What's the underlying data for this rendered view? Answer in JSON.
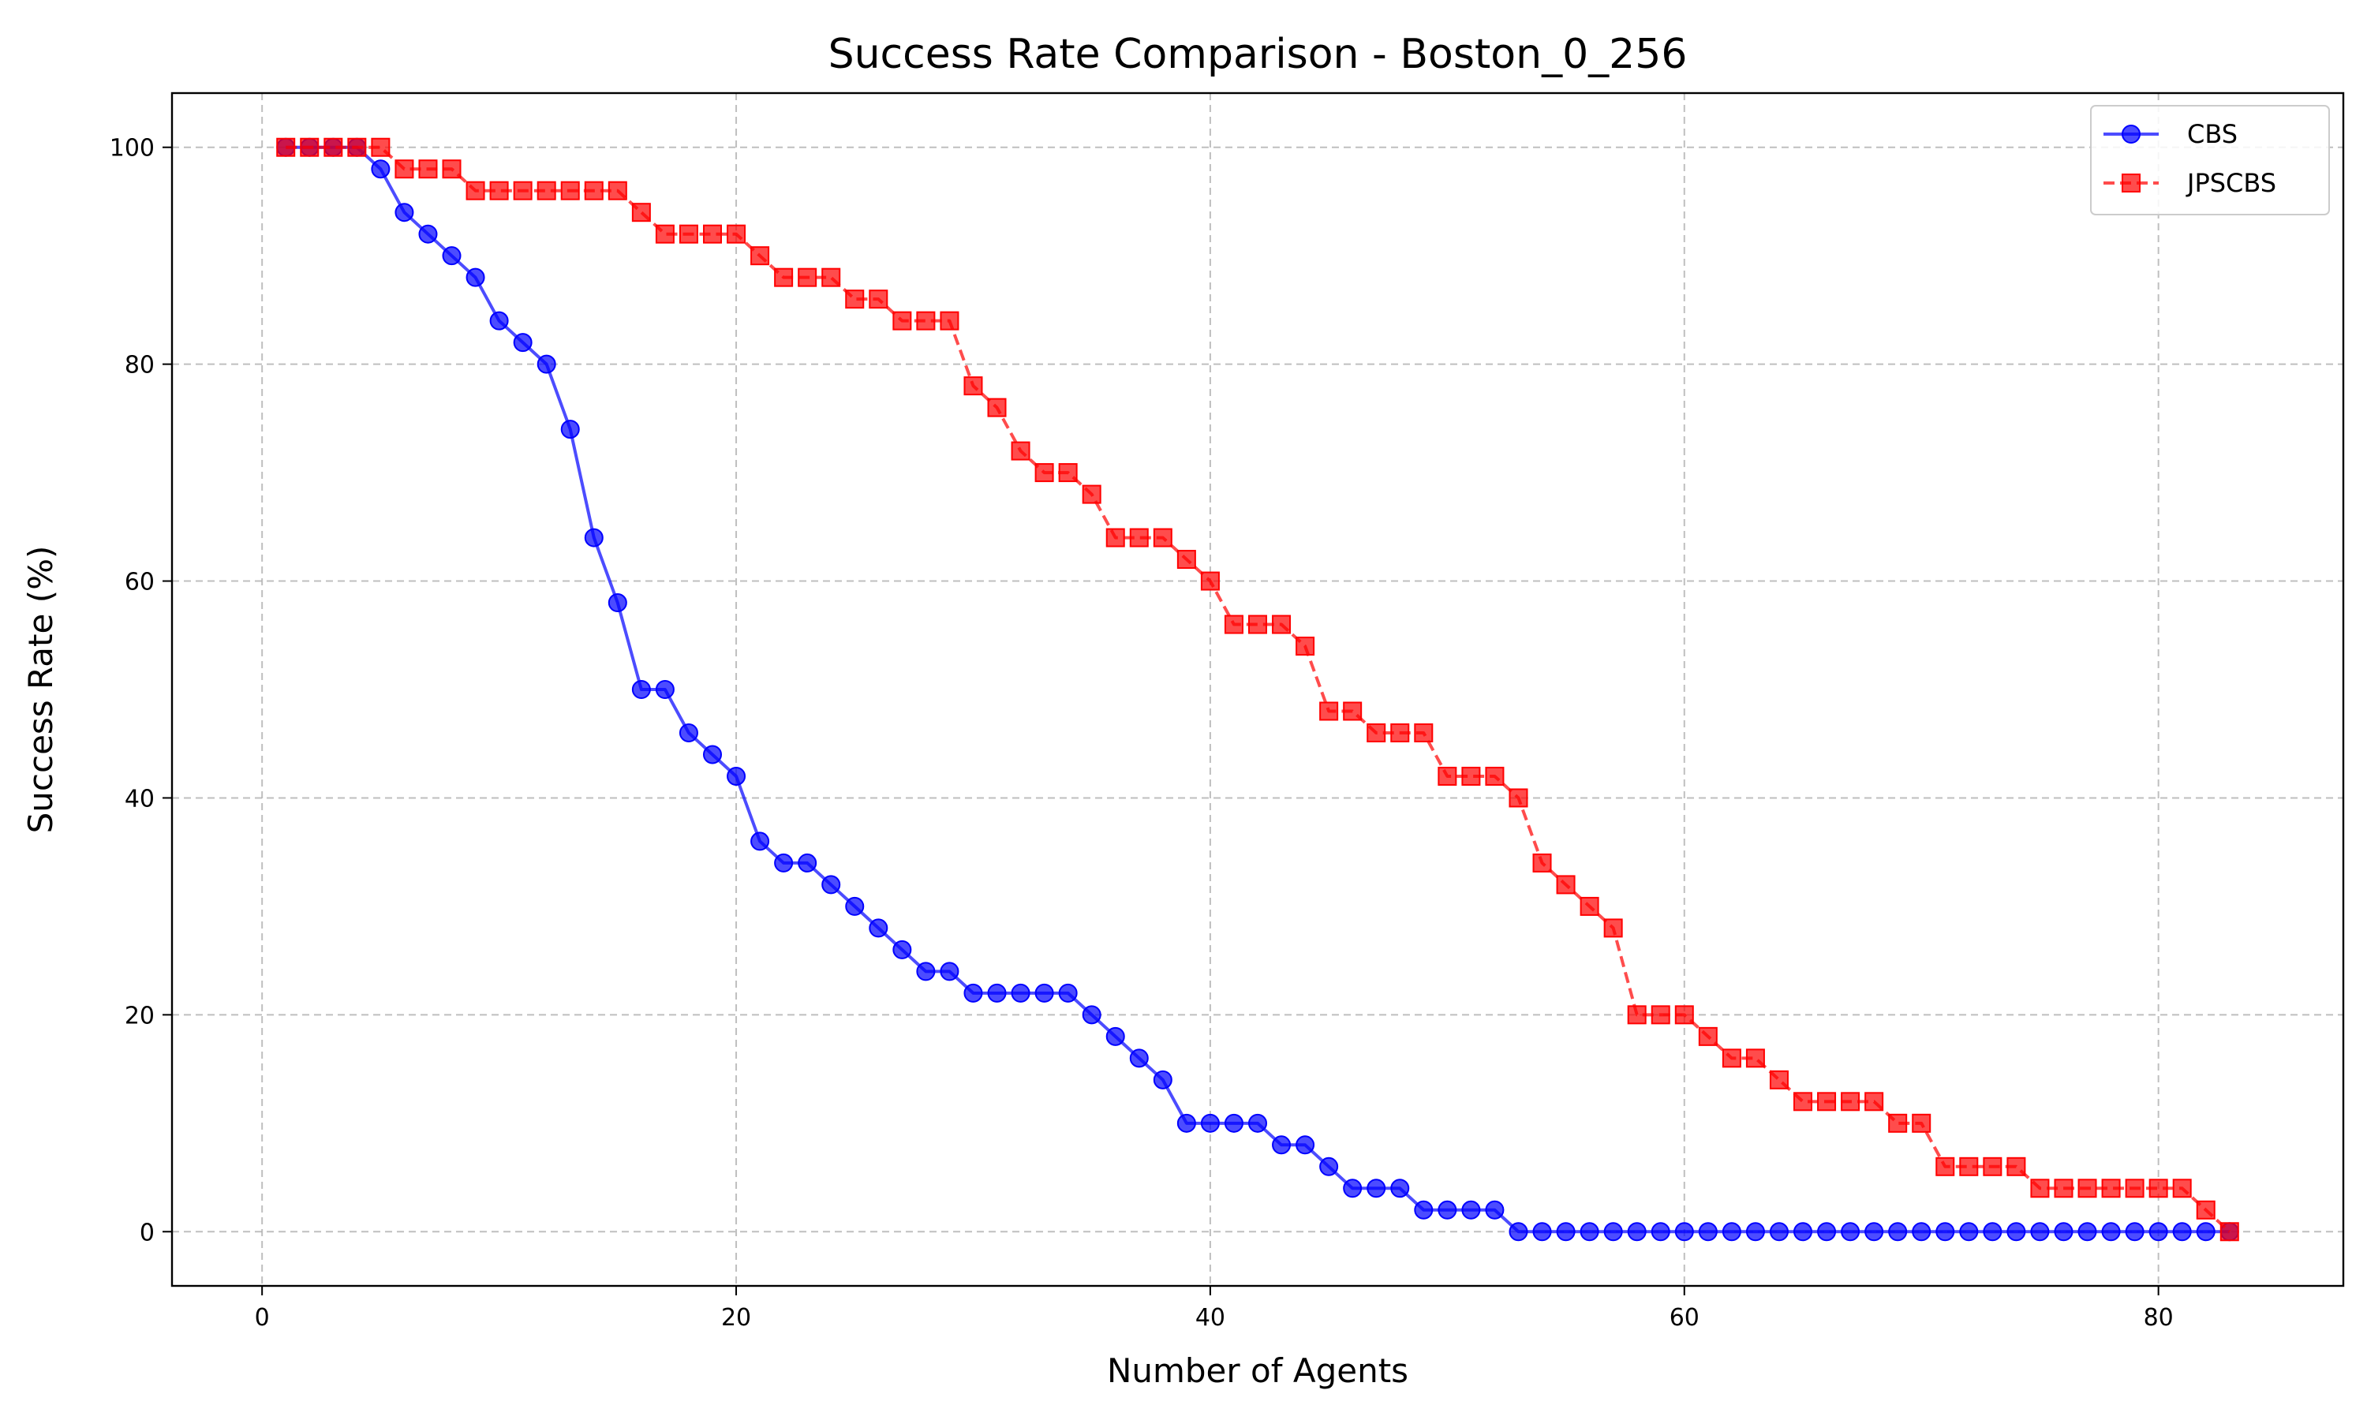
{
  "chart_data": {
    "type": "line",
    "title": "Success Rate Comparison - Boston_0_256",
    "xlabel": "Number of Agents",
    "ylabel": "Success Rate (%)",
    "xlim": [
      -3.8,
      87.8
    ],
    "ylim": [
      -5,
      105
    ],
    "xticks": [
      0,
      20,
      40,
      60,
      80
    ],
    "yticks": [
      0,
      20,
      40,
      60,
      80,
      100
    ],
    "grid": true,
    "legend_position": "top-right",
    "x": [
      1,
      2,
      3,
      4,
      5,
      6,
      7,
      8,
      9,
      10,
      11,
      12,
      13,
      14,
      15,
      16,
      17,
      18,
      19,
      20,
      21,
      22,
      23,
      24,
      25,
      26,
      27,
      28,
      29,
      30,
      31,
      32,
      33,
      34,
      35,
      36,
      37,
      38,
      39,
      40,
      41,
      42,
      43,
      44,
      45,
      46,
      47,
      48,
      49,
      50,
      51,
      52,
      53,
      54,
      55,
      56,
      57,
      58,
      59,
      60,
      61,
      62,
      63,
      64,
      65,
      66,
      67,
      68,
      69,
      70,
      71,
      72,
      73,
      74,
      75,
      76,
      77,
      78,
      79,
      80,
      81,
      82,
      83
    ],
    "series": [
      {
        "name": "CBS",
        "color": "#0000ff",
        "marker": "circle",
        "linestyle": "solid",
        "values": [
          100,
          100,
          100,
          100,
          98,
          94,
          92,
          90,
          88,
          84,
          82,
          80,
          74,
          64,
          58,
          50,
          50,
          46,
          44,
          42,
          36,
          34,
          34,
          32,
          30,
          28,
          26,
          24,
          24,
          22,
          22,
          22,
          22,
          22,
          20,
          18,
          16,
          14,
          10,
          10,
          10,
          10,
          8,
          8,
          6,
          4,
          4,
          4,
          2,
          2,
          2,
          2,
          0,
          0,
          0,
          0,
          0,
          0,
          0,
          0,
          0,
          0,
          0,
          0,
          0,
          0,
          0,
          0,
          0,
          0,
          0,
          0,
          0,
          0,
          0,
          0,
          0,
          0,
          0,
          0,
          0,
          0,
          0
        ]
      },
      {
        "name": "JPSCBS",
        "color": "#ff0000",
        "marker": "square",
        "linestyle": "dashed",
        "values": [
          100,
          100,
          100,
          100,
          100,
          98,
          98,
          98,
          96,
          96,
          96,
          96,
          96,
          96,
          96,
          94,
          92,
          92,
          92,
          92,
          90,
          88,
          88,
          88,
          86,
          86,
          84,
          84,
          84,
          78,
          76,
          72,
          70,
          70,
          68,
          64,
          64,
          64,
          62,
          60,
          56,
          56,
          56,
          54,
          48,
          48,
          46,
          46,
          46,
          42,
          42,
          42,
          40,
          34,
          32,
          30,
          28,
          20,
          20,
          20,
          18,
          16,
          16,
          14,
          12,
          12,
          12,
          12,
          10,
          10,
          6,
          6,
          6,
          6,
          4,
          4,
          4,
          4,
          4,
          4,
          4,
          2,
          0
        ]
      }
    ]
  }
}
